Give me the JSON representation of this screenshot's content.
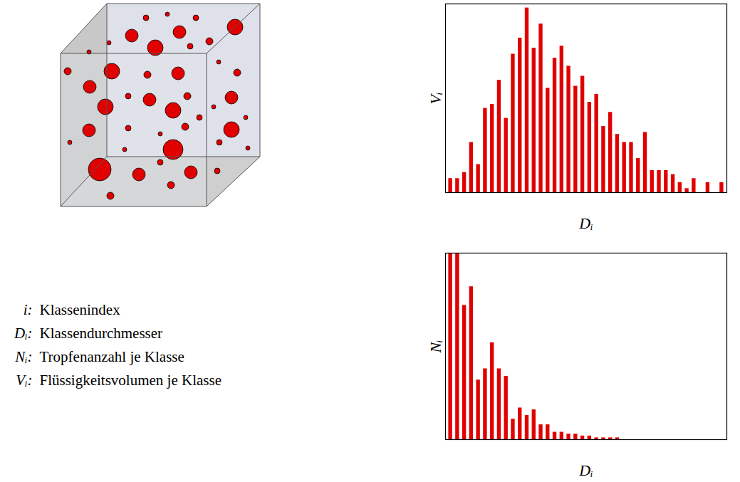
{
  "chart_data": [
    {
      "type": "bar",
      "x_label": "Dᵢ",
      "y_label": "Vᵢ",
      "categories": [
        null,
        null,
        null,
        null,
        null,
        null,
        null,
        null,
        null,
        null,
        null,
        null,
        null,
        null,
        null,
        null,
        null,
        null,
        null,
        null,
        null,
        null,
        null,
        null,
        null,
        null,
        null,
        null,
        null,
        null,
        null,
        null,
        null,
        null,
        null,
        null,
        null,
        null,
        null,
        null
      ],
      "values": [
        7,
        7,
        10,
        25,
        14,
        42,
        44,
        56,
        37,
        69,
        77,
        92,
        72,
        84,
        52,
        67,
        73,
        63,
        53,
        58,
        45,
        49,
        33,
        40,
        29,
        25,
        25,
        17,
        30,
        11,
        11,
        11,
        9,
        5,
        2,
        7,
        0,
        5,
        0,
        5
      ],
      "color": "#e00000",
      "ylim": [
        0,
        94
      ],
      "tick_labels": false
    },
    {
      "type": "bar",
      "x_label": "Dᵢ",
      "y_label": "Nᵢ",
      "categories": [
        null,
        null,
        null,
        null,
        null,
        null,
        null,
        null,
        null,
        null,
        null,
        null,
        null,
        null,
        null,
        null,
        null,
        null,
        null,
        null,
        null,
        null,
        null,
        null,
        null,
        null,
        null,
        null,
        null,
        null,
        null,
        null,
        null,
        null,
        null,
        null,
        null,
        null,
        null,
        null
      ],
      "values": [
        100,
        100,
        72,
        82,
        32,
        38,
        52,
        38,
        34,
        11,
        17,
        13,
        16,
        8,
        8,
        4,
        4,
        3,
        3,
        2,
        2,
        1,
        1,
        1,
        1,
        0,
        0,
        0,
        0,
        0,
        0,
        0,
        0,
        0,
        0,
        0,
        0,
        0,
        0,
        0
      ],
      "color": "#e00000",
      "ylim": [
        0,
        100
      ],
      "tick_labels": false
    }
  ],
  "key": [
    {
      "symbol": "i:",
      "text": "Klassenindex"
    },
    {
      "symbol": "Dᵢ:",
      "text": "Klassendurchmesser"
    },
    {
      "symbol": "Nᵢ:",
      "text": "Tropfenanzahl je Klasse"
    },
    {
      "symbol": "Vᵢ:",
      "text": "Flüssigkeitsvolumen je Klasse"
    }
  ]
}
